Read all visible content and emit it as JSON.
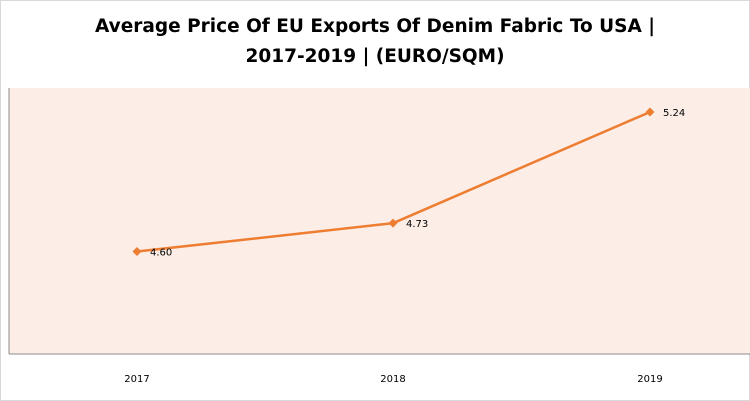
{
  "chart_data": {
    "type": "line",
    "title_line1": "Average Price Of EU Exports Of Denim Fabric To USA |",
    "title_line2": "2017-2019  | (EURO/SQM)",
    "categories": [
      "2017",
      "2018",
      "2019"
    ],
    "series": [
      {
        "values": [
          4.6,
          4.73,
          5.24
        ],
        "labels": [
          "4.60",
          "4.73",
          "5.24"
        ],
        "color": "#ED7D31"
      }
    ],
    "ylim": [
      4.13,
      5.35
    ],
    "plot_background": "#FCEDE7",
    "grid": false
  }
}
